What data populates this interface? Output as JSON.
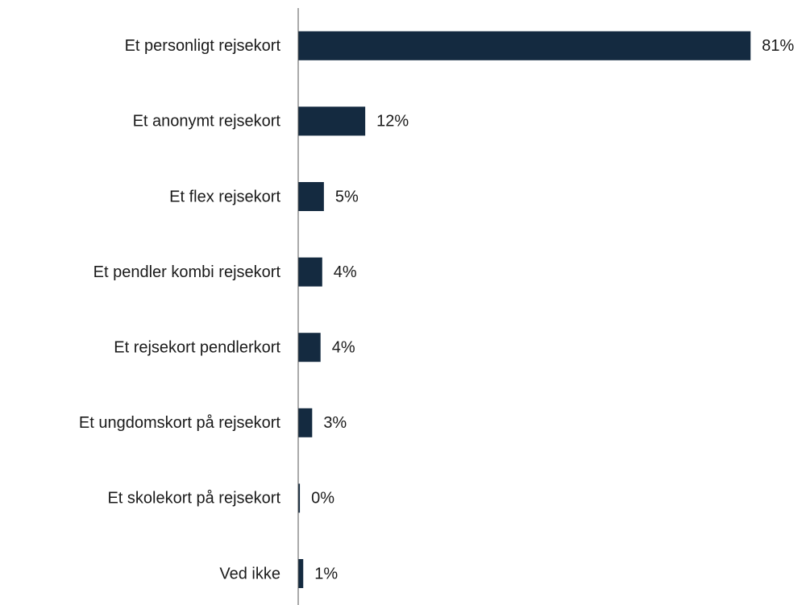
{
  "chart_data": {
    "type": "barh",
    "categories": [
      "Et personligt rejsekort",
      "Et anonymt rejsekort",
      "Et flex rejsekort",
      "Et pendler kombi rejsekort",
      "Et rejsekort pendlerkort",
      "Et ungdomskort på rejsekort",
      "Et skolekort på rejsekort",
      "Ved ikke"
    ],
    "values": [
      81,
      12,
      4.6,
      4.3,
      4.0,
      2.5,
      0.3,
      0.9
    ],
    "value_labels": [
      "81%",
      "12%",
      "5%",
      "4%",
      "4%",
      "3%",
      "0%",
      "1%"
    ],
    "color": "#142a40",
    "xlim": [
      0,
      85
    ]
  }
}
